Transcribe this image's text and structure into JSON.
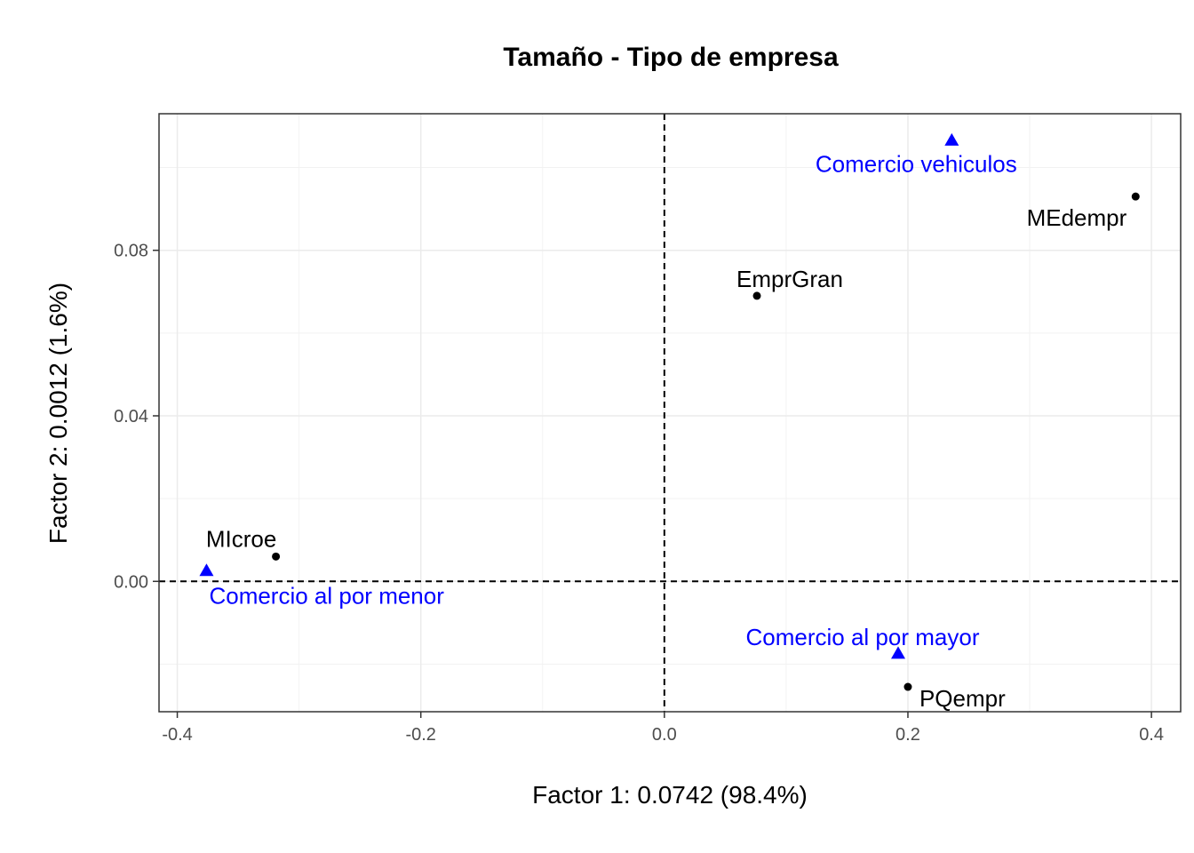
{
  "chart_data": {
    "type": "scatter",
    "title": "Tamaño - Tipo de empresa",
    "xlabel": "Factor 1: 0.0742 (98.4%)",
    "ylabel": "Factor 2: 0.0012 (1.6%)",
    "xlim": [
      -0.415,
      0.424
    ],
    "ylim": [
      -0.0315,
      0.113
    ],
    "xticks": [
      -0.4,
      -0.2,
      0.0,
      0.2,
      0.4
    ],
    "xtick_labels": [
      "-0.4",
      "-0.2",
      "0.0",
      "0.2",
      "0.4"
    ],
    "yticks": [
      0.0,
      0.04,
      0.08
    ],
    "ytick_labels": [
      "0.00",
      "0.04",
      "0.08"
    ],
    "reference_lines": {
      "x": 0,
      "y": 0,
      "style": "dashed"
    },
    "grid": true,
    "series": [
      {
        "marker": "circle",
        "color": "#000000",
        "points": [
          {
            "label": "MEdempr",
            "x": 0.387,
            "y": 0.093
          },
          {
            "label": "EmprGran",
            "x": 0.076,
            "y": 0.069
          },
          {
            "label": "MIcroe",
            "x": -0.319,
            "y": 0.006
          },
          {
            "label": "PQempr",
            "x": 0.2,
            "y": -0.0255
          }
        ]
      },
      {
        "marker": "triangle",
        "color": "#0000ff",
        "points": [
          {
            "label": "Comercio vehiculos",
            "x": 0.236,
            "y": 0.1065
          },
          {
            "label": "Comercio al por menor",
            "x": -0.376,
            "y": 0.0025
          },
          {
            "label": "Comercio al por mayor",
            "x": 0.192,
            "y": -0.0175
          }
        ]
      }
    ]
  }
}
